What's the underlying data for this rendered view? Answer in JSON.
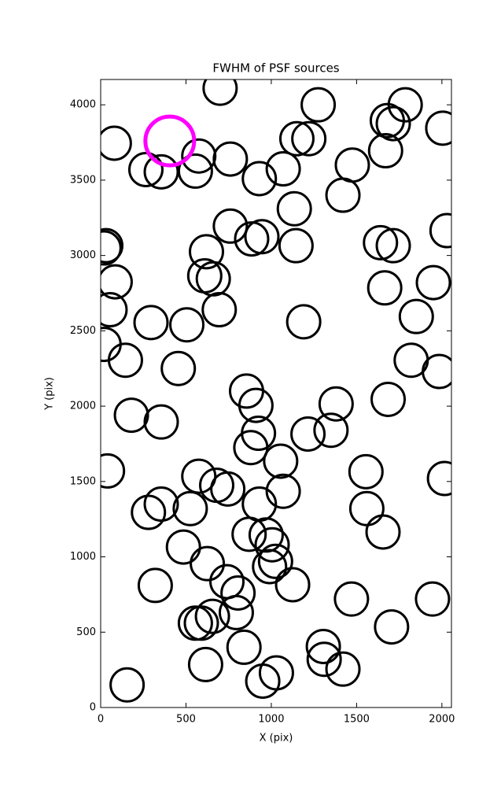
{
  "chart_data": {
    "type": "scatter",
    "title": "FWHM of PSF sources",
    "x_label": "X (pix)",
    "y_label": "Y (pix)",
    "xlim": [
      0,
      2056
    ],
    "ylim": [
      0,
      4168
    ],
    "xticks": [
      0,
      500,
      1000,
      1500,
      2000
    ],
    "yticks": [
      0,
      500,
      1000,
      1500,
      2000,
      2500,
      3000,
      3500,
      4000
    ],
    "series": [
      {
        "color": "#000000",
        "x": [
          700,
          1275,
          1785,
          1680,
          1715,
          2005,
          80,
          1150,
          1220,
          1670,
          575,
          760,
          265,
          355,
          555,
          930,
          1070,
          1475,
          1420,
          1135,
          760,
          885,
          945,
          1145,
          1640,
          1715,
          2030,
          30,
          20,
          620,
          610,
          660,
          85,
          1950,
          1665,
          55,
          695,
          295,
          505,
          1190,
          1850,
          20,
          145,
          455,
          1820,
          1985,
          855,
          910,
          1380,
          1685,
          180,
          355,
          925,
          1215,
          1350,
          880,
          1055,
          40,
          1555,
          2015,
          575,
          680,
          745,
          1070,
          930,
          355,
          280,
          525,
          1560,
          1655,
          870,
          970,
          1005,
          485,
          1025,
          990,
          625,
          1125,
          740,
          805,
          320,
          1470,
          1945,
          795,
          655,
          555,
          590,
          1705,
          840,
          1305,
          1310,
          615,
          1420,
          1030,
          950,
          155
        ],
        "values": [
          4110,
          4000,
          4000,
          3895,
          3875,
          3845,
          3745,
          3775,
          3775,
          3695,
          3660,
          3640,
          3570,
          3555,
          3560,
          3510,
          3575,
          3600,
          3400,
          3310,
          3195,
          3110,
          3125,
          3065,
          3085,
          3065,
          3165,
          3065,
          3050,
          3025,
          2865,
          2845,
          2825,
          2820,
          2785,
          2640,
          2640,
          2555,
          2540,
          2560,
          2595,
          2410,
          2305,
          2250,
          2305,
          2230,
          2100,
          2005,
          2015,
          2045,
          1940,
          1895,
          1820,
          1815,
          1840,
          1725,
          1635,
          1570,
          1565,
          1520,
          1535,
          1475,
          1450,
          1435,
          1350,
          1350,
          1295,
          1320,
          1320,
          1165,
          1150,
          1145,
          1080,
          1065,
          970,
          935,
          955,
          815,
          835,
          760,
          810,
          720,
          720,
          630,
          605,
          560,
          560,
          535,
          400,
          405,
          320,
          285,
          255,
          230,
          175,
          150
        ]
      },
      {
        "color": "#ff00ff",
        "x": [
          405
        ],
        "values": [
          3760
        ]
      }
    ]
  }
}
